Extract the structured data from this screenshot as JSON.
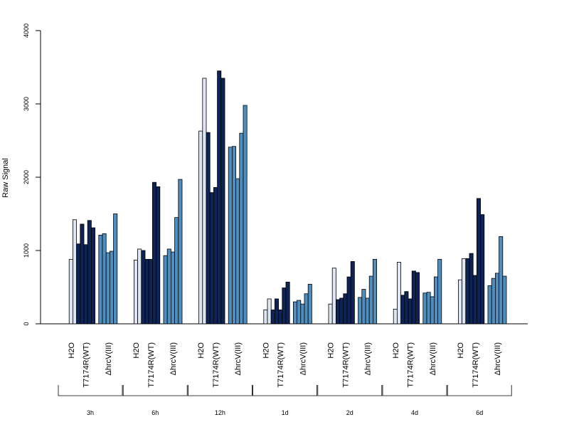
{
  "chart_data": {
    "type": "bar",
    "ylabel": "Raw Signal",
    "xlabel": "",
    "ylim": [
      0,
      4000
    ],
    "yticks": [
      0,
      1000,
      2000,
      3000,
      4000
    ],
    "conditions": [
      "H2O",
      "T7174R(WT)",
      "ΔhrcV(III)"
    ],
    "colors": {
      "H2O": "#dde6f2",
      "T7174R(WT)": "#0c2456",
      "ΔhrcV(III)": "#4f8fc0"
    },
    "groups": [
      {
        "time": "3h",
        "H2O": [
          0,
          880,
          1420
        ],
        "T7174R(WT)": [
          1090,
          1360,
          1080,
          1410,
          1310
        ],
        "ΔhrcV(III)": [
          1210,
          1230,
          970,
          990,
          1500
        ]
      },
      {
        "time": "6h",
        "H2O": [
          0,
          870,
          1020
        ],
        "T7174R(WT)": [
          1000,
          880,
          880,
          1930,
          1870
        ],
        "ΔhrcV(III)": [
          930,
          1020,
          980,
          1450,
          1970
        ]
      },
      {
        "time": "12h",
        "H2O": [
          0,
          2630,
          3350
        ],
        "T7174R(WT)": [
          2610,
          1790,
          1860,
          3450,
          3350
        ],
        "ΔhrcV(III)": [
          2410,
          2420,
          1980,
          2600,
          2980
        ]
      },
      {
        "time": "1d",
        "H2O": [
          0,
          190,
          340
        ],
        "T7174R(WT)": [
          190,
          340,
          190,
          490,
          570
        ],
        "ΔhrcV(III)": [
          300,
          320,
          270,
          410,
          540
        ]
      },
      {
        "time": "2d",
        "H2O": [
          0,
          270,
          760
        ],
        "T7174R(WT)": [
          330,
          350,
          410,
          640,
          850
        ],
        "ΔhrcV(III)": [
          360,
          470,
          350,
          650,
          880
        ]
      },
      {
        "time": "4d",
        "H2O": [
          0,
          200,
          840
        ],
        "T7174R(WT)": [
          390,
          440,
          340,
          720,
          700
        ],
        "ΔhrcV(III)": [
          420,
          430,
          370,
          640,
          880
        ]
      },
      {
        "time": "6d",
        "H2O": [
          0,
          600,
          890
        ],
        "T7174R(WT)": [
          890,
          960,
          660,
          1710,
          1490
        ],
        "ΔhrcV(III)": [
          520,
          620,
          690,
          1190,
          650
        ]
      }
    ]
  }
}
